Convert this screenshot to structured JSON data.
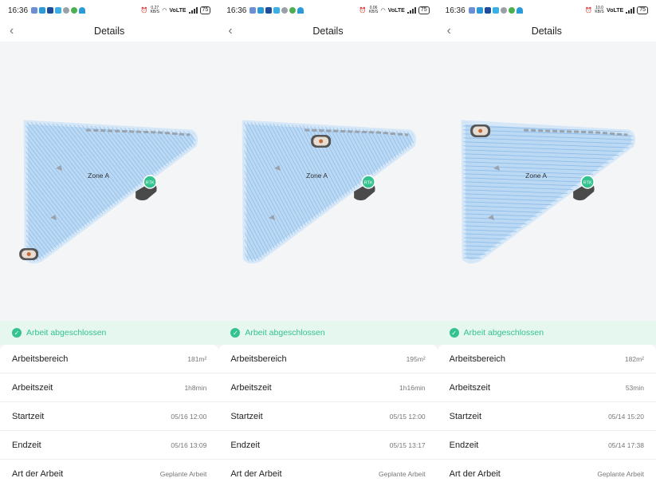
{
  "colors": {
    "accent": "#34c28f",
    "mowed_area": "#b9d8f4",
    "stripe": "#7fb3e6",
    "mower": "#4a4a4a"
  },
  "screens": [
    {
      "status": {
        "time": "16:36",
        "speed": "0.27 KB/S",
        "network": "VoLTE",
        "battery": "75"
      },
      "header": {
        "back_icon": "chevron-left-icon",
        "title": "Details"
      },
      "map": {
        "zone_label": "Zone A",
        "rtk_label": "RTK"
      },
      "banner": {
        "text": "Arbeit abgeschlossen"
      },
      "rows": [
        {
          "label": "Arbeitsbereich",
          "value": "181m²"
        },
        {
          "label": "Arbeitszeit",
          "value": "1h8min"
        },
        {
          "label": "Startzeit",
          "value": "05/16 12:00"
        },
        {
          "label": "Endzeit",
          "value": "05/16 13:09"
        },
        {
          "label": "Art der Arbeit",
          "value": "Geplante Arbeit"
        }
      ]
    },
    {
      "status": {
        "time": "16:36",
        "speed": "0.06 KB/S",
        "network": "VoLTE",
        "battery": "75"
      },
      "header": {
        "back_icon": "chevron-left-icon",
        "title": "Details"
      },
      "map": {
        "zone_label": "Zone A",
        "rtk_label": "RTK"
      },
      "banner": {
        "text": "Arbeit abgeschlossen"
      },
      "rows": [
        {
          "label": "Arbeitsbereich",
          "value": "195m²"
        },
        {
          "label": "Arbeitszeit",
          "value": "1h16min"
        },
        {
          "label": "Startzeit",
          "value": "05/15 12:00"
        },
        {
          "label": "Endzeit",
          "value": "05/15 13:17"
        },
        {
          "label": "Art der Arbeit",
          "value": "Geplante Arbeit"
        }
      ]
    },
    {
      "status": {
        "time": "16:36",
        "speed": "10.0 KB/S",
        "network": "VoLTE",
        "battery": "75"
      },
      "header": {
        "back_icon": "chevron-left-icon",
        "title": "Details"
      },
      "map": {
        "zone_label": "Zone A",
        "rtk_label": "RTK"
      },
      "banner": {
        "text": "Arbeit abgeschlossen"
      },
      "rows": [
        {
          "label": "Arbeitsbereich",
          "value": "182m²"
        },
        {
          "label": "Arbeitszeit",
          "value": "53min"
        },
        {
          "label": "Startzeit",
          "value": "05/14 15:20"
        },
        {
          "label": "Endzeit",
          "value": "05/14 17:38"
        },
        {
          "label": "Art der Arbeit",
          "value": "Geplante Arbeit"
        }
      ]
    }
  ]
}
